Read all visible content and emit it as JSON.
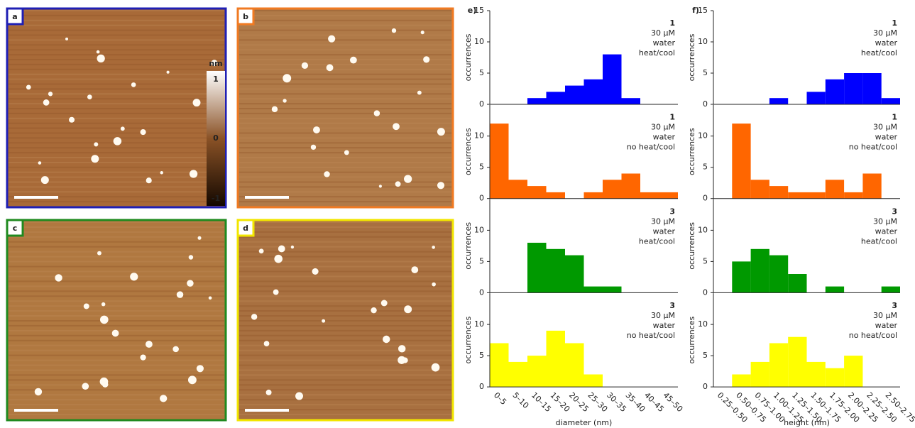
{
  "images": [
    {
      "label": "a",
      "color": "#1f1fb4"
    },
    {
      "label": "b",
      "color": "#f07a22"
    },
    {
      "label": "c",
      "color": "#1f8a1f"
    },
    {
      "label": "d",
      "color": "#f2e600"
    }
  ],
  "colorbar": {
    "unit": "nm",
    "lim": [
      -1,
      1
    ],
    "ticks": [
      1,
      0,
      -1
    ]
  },
  "chart_data": [
    {
      "type": "bar",
      "title": "e)",
      "ylabel": "occurrences",
      "color": "#0000ff",
      "categories": [
        null,
        null,
        null,
        null,
        null,
        null,
        null,
        null,
        null,
        null
      ],
      "values": [
        0,
        0,
        1,
        2,
        3,
        4,
        8,
        1,
        0,
        0
      ],
      "ylim": [
        0,
        15
      ],
      "yticks": [
        0,
        5,
        10,
        15
      ],
      "annotations": [
        "1",
        "30 μM",
        "water",
        "heat/cool"
      ]
    },
    {
      "type": "bar",
      "title": "f)",
      "ylabel": "occurrences",
      "color": "#0000ff",
      "categories": [
        null,
        null,
        null,
        null,
        null,
        null,
        null,
        null,
        null,
        null
      ],
      "values": [
        0,
        0,
        0,
        1,
        0,
        2,
        4,
        5,
        5,
        1
      ],
      "ylim": [
        0,
        15
      ],
      "yticks": [
        0,
        5,
        10,
        15
      ],
      "annotations": [
        "1",
        "30 μM",
        "water",
        "heat/cool"
      ]
    },
    {
      "type": "bar",
      "ylabel": "occurrences",
      "color": "#ff6600",
      "categories": [
        null,
        null,
        null,
        null,
        null,
        null,
        null,
        null,
        null,
        null
      ],
      "values": [
        12,
        3,
        2,
        1,
        0,
        1,
        3,
        4,
        1,
        1
      ],
      "ylim": [
        0,
        15
      ],
      "yticks": [
        0,
        5,
        10
      ],
      "annotations": [
        "1",
        "30 μM",
        "water",
        "no heat/cool"
      ]
    },
    {
      "type": "bar",
      "ylabel": "occurrences",
      "color": "#ff6600",
      "categories": [
        null,
        null,
        null,
        null,
        null,
        null,
        null,
        null,
        null,
        null
      ],
      "values": [
        0,
        12,
        3,
        2,
        1,
        1,
        3,
        1,
        4,
        0
      ],
      "ylim": [
        0,
        15
      ],
      "yticks": [
        0,
        5,
        10
      ],
      "annotations": [
        "1",
        "30 μM",
        "water",
        "no heat/cool"
      ]
    },
    {
      "type": "bar",
      "ylabel": "occurrences",
      "color": "#009900",
      "categories": [
        null,
        null,
        null,
        null,
        null,
        null,
        null,
        null,
        null,
        null
      ],
      "values": [
        0,
        0,
        8,
        7,
        6,
        1,
        1,
        0,
        0,
        0
      ],
      "ylim": [
        0,
        15
      ],
      "yticks": [
        0,
        5,
        10
      ],
      "annotations": [
        "3",
        "30 μM",
        "water",
        "heat/cool"
      ]
    },
    {
      "type": "bar",
      "ylabel": "occurrences",
      "color": "#009900",
      "categories": [
        null,
        null,
        null,
        null,
        null,
        null,
        null,
        null,
        null,
        null
      ],
      "values": [
        0,
        5,
        7,
        6,
        3,
        0,
        1,
        0,
        0,
        1
      ],
      "ylim": [
        0,
        15
      ],
      "yticks": [
        0,
        5,
        10
      ],
      "annotations": [
        "3",
        "30 μM",
        "water",
        "heat/cool"
      ]
    },
    {
      "type": "bar",
      "ylabel": "occurrences",
      "xlabel": "diameter (nm)",
      "color": "#ffff00",
      "categories": [
        "0–5",
        "5–10",
        "10–15",
        "15–20",
        "20–25",
        "25–30",
        "30–35",
        "35–40",
        "40–45",
        "45–50"
      ],
      "values": [
        7,
        4,
        5,
        9,
        7,
        2,
        0,
        0,
        0,
        0
      ],
      "ylim": [
        0,
        15
      ],
      "yticks": [
        0,
        5,
        10
      ],
      "annotations": [
        "3",
        "30 μM",
        "water",
        "no heat/cool"
      ]
    },
    {
      "type": "bar",
      "ylabel": "occurrences",
      "xlabel": "height (nm)",
      "color": "#ffff00",
      "categories": [
        "0.25–0.50",
        "0.50–0.75",
        "0.75–1.00",
        "1.00–1.25",
        "1.25–1.50",
        "1.50–1.75",
        "1.75–2.00",
        "2.00–2.25",
        "2.25–2.50",
        "2.50–2.75"
      ],
      "values": [
        0,
        2,
        4,
        7,
        8,
        4,
        3,
        5,
        0,
        0
      ],
      "ylim": [
        0,
        15
      ],
      "yticks": [
        0,
        5,
        10
      ],
      "annotations": [
        "3",
        "30 μM",
        "water",
        "no heat/cool"
      ]
    }
  ]
}
